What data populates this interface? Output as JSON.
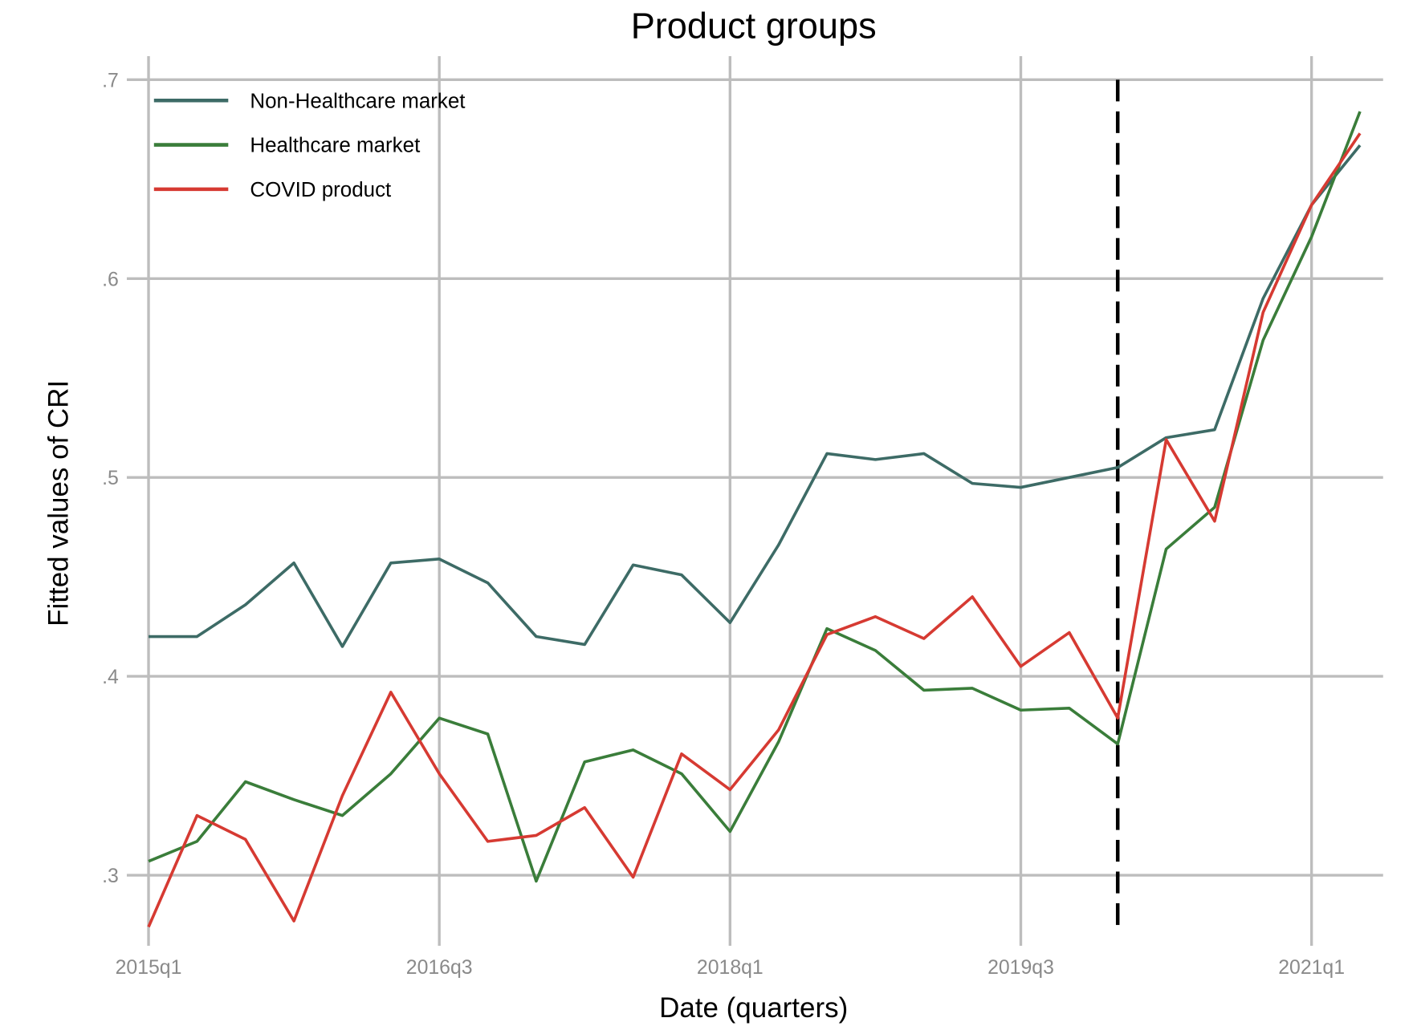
{
  "chart_data": {
    "type": "line",
    "title": "Product groups",
    "xlabel": "Date (quarters)",
    "ylabel": "Fitted values of CRI",
    "x": [
      "2015q1",
      "2015q2",
      "2015q3",
      "2015q4",
      "2016q1",
      "2016q2",
      "2016q3",
      "2016q4",
      "2017q1",
      "2017q2",
      "2017q3",
      "2017q4",
      "2018q1",
      "2018q2",
      "2018q3",
      "2018q4",
      "2019q1",
      "2019q2",
      "2019q3",
      "2019q4",
      "2020q1",
      "2020q2",
      "2020q3",
      "2020q4",
      "2021q1",
      "2021q2"
    ],
    "x_ticks": [
      "2015q1",
      "2016q3",
      "2018q1",
      "2019q3",
      "2021q1"
    ],
    "y_ticks": [
      {
        "value": 0.3,
        "label": ".3"
      },
      {
        "value": 0.4,
        "label": ".4"
      },
      {
        "value": 0.5,
        "label": ".5"
      },
      {
        "value": 0.6,
        "label": ".6"
      },
      {
        "value": 0.7,
        "label": ".7"
      }
    ],
    "ylim": [
      0.26,
      0.712
    ],
    "grid": true,
    "legend_position": "top-left",
    "vline": {
      "x": "2020q1",
      "style": "dashed",
      "color": "#000000"
    },
    "series": [
      {
        "name": "Non-Healthcare market",
        "color": "#3d6b66",
        "values": [
          0.42,
          0.42,
          0.436,
          0.457,
          0.415,
          0.457,
          0.459,
          0.447,
          0.42,
          0.416,
          0.456,
          0.451,
          0.427,
          0.466,
          0.512,
          0.509,
          0.512,
          0.497,
          0.495,
          0.5,
          0.505,
          0.52,
          0.524,
          0.59,
          0.637,
          0.667
        ]
      },
      {
        "name": "Healthcare market",
        "color": "#3a7d3a",
        "values": [
          0.307,
          0.317,
          0.347,
          0.338,
          0.33,
          0.351,
          0.379,
          0.371,
          0.297,
          0.357,
          0.363,
          0.351,
          0.322,
          0.367,
          0.424,
          0.413,
          0.393,
          0.394,
          0.383,
          0.384,
          0.366,
          0.464,
          0.485,
          0.569,
          0.621,
          0.684
        ]
      },
      {
        "name": "COVID product",
        "color": "#d63a32",
        "values": [
          0.274,
          0.33,
          0.318,
          0.277,
          0.34,
          0.392,
          0.351,
          0.317,
          0.32,
          0.334,
          0.299,
          0.361,
          0.343,
          0.373,
          0.421,
          0.43,
          0.419,
          0.44,
          0.405,
          0.422,
          0.379,
          0.519,
          0.478,
          0.583,
          0.637,
          0.673
        ]
      }
    ]
  }
}
